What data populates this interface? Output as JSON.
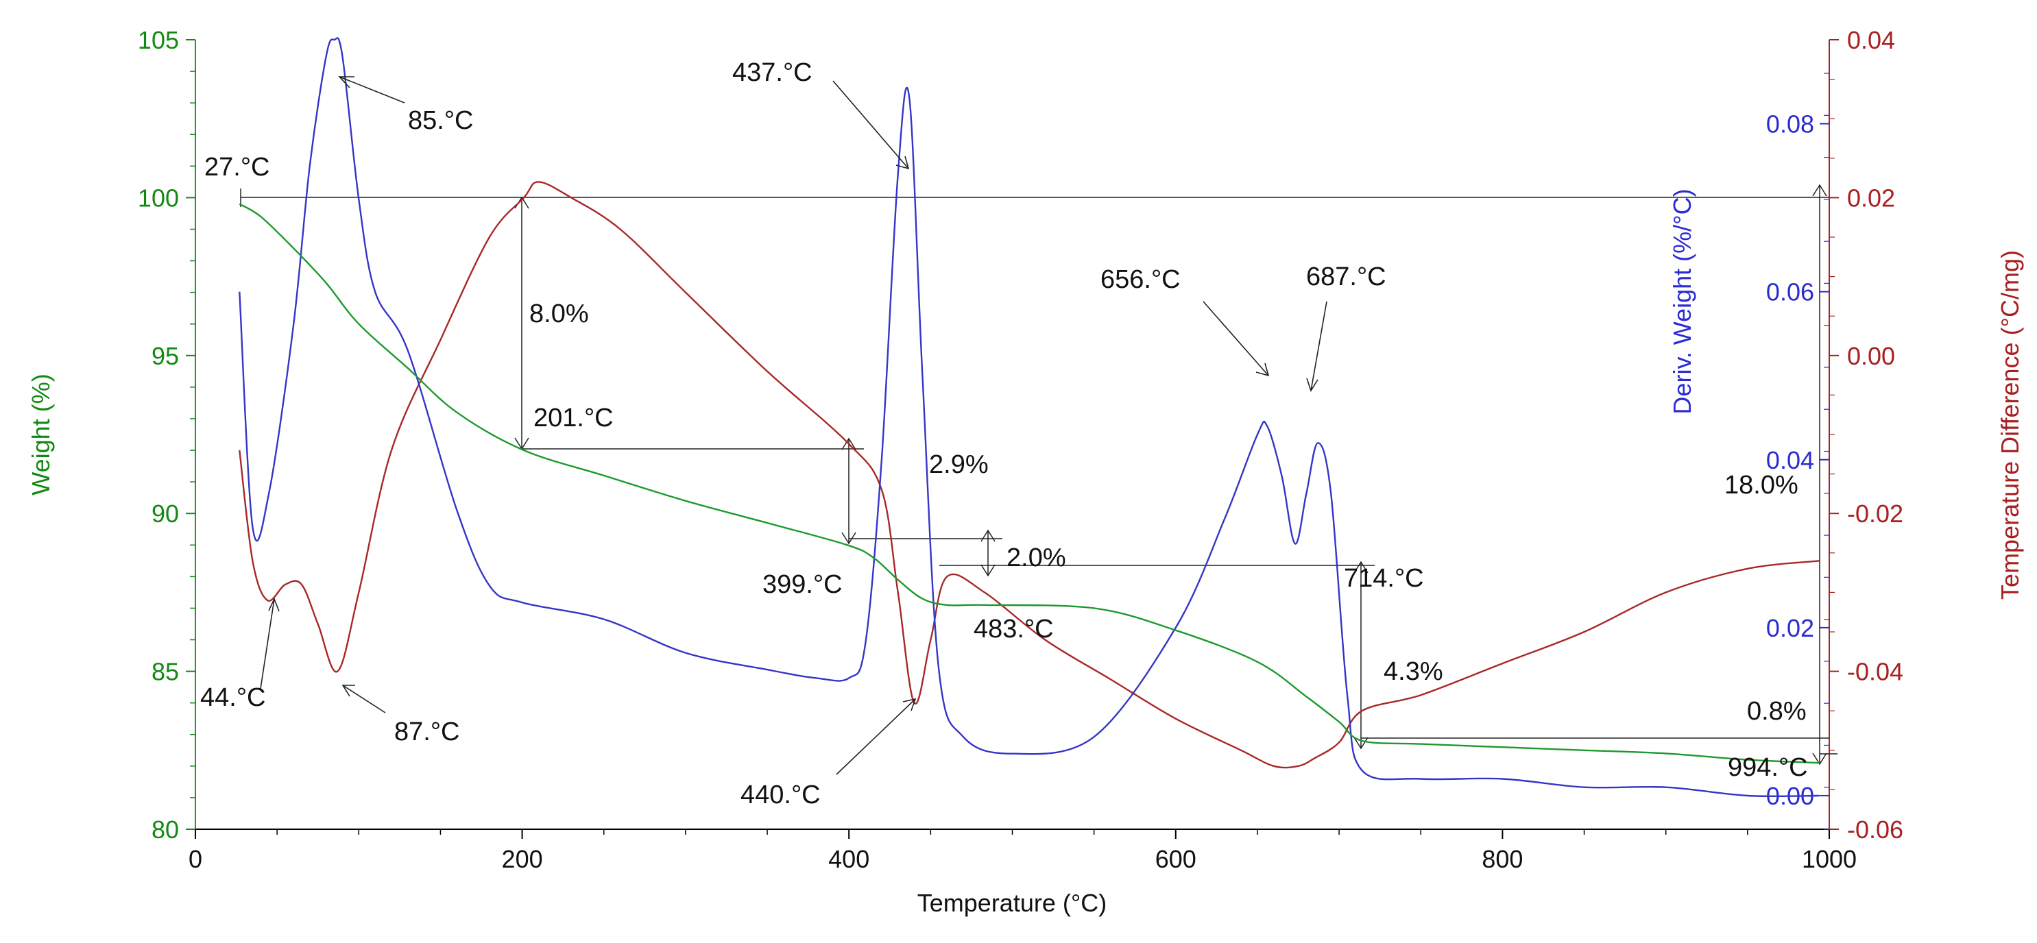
{
  "chart_data": {
    "type": "line",
    "title": "",
    "xlabel": "Temperature (°C)",
    "xlim": [
      0,
      1000
    ],
    "x_ticks": [
      0,
      200,
      400,
      600,
      800,
      1000
    ],
    "axes": {
      "weight": {
        "label": "Weight (%)",
        "range": [
          80,
          105
        ],
        "ticks": [
          80,
          85,
          90,
          95,
          100,
          105
        ],
        "color": "#128a12"
      },
      "deriv": {
        "label": "Deriv. Weight (%/°C)",
        "range": [
          -0.004,
          0.09
        ],
        "ticks": [
          0.0,
          0.02,
          0.04,
          0.06,
          0.08
        ],
        "tick_labels": [
          "0.00",
          "0.02",
          "0.04",
          "0.06",
          "0.08"
        ],
        "color": "#2b2bd4"
      },
      "tdiff": {
        "label": "Temperature Difference (°C/mg)",
        "range": [
          -0.06,
          0.04
        ],
        "ticks": [
          -0.06,
          -0.04,
          -0.02,
          0.0,
          0.02,
          0.04
        ],
        "tick_labels": [
          "-0.06",
          "-0.04",
          "-0.02",
          "0.00",
          "0.02",
          "0.04"
        ],
        "color": "#a82020"
      }
    },
    "series": [
      {
        "name": "Weight",
        "axis": "weight",
        "color": "#1d9a2c",
        "x": [
          27,
          40,
          60,
          80,
          100,
          130,
          160,
          201,
          250,
          300,
          350,
          399,
          415,
          430,
          445,
          460,
          483,
          550,
          600,
          650,
          680,
          700,
          714,
          750,
          800,
          850,
          900,
          950,
          994
        ],
        "y": [
          99.8,
          99.4,
          98.4,
          97.3,
          96.0,
          94.6,
          93.2,
          92.0,
          91.2,
          90.4,
          89.7,
          89.0,
          88.6,
          87.9,
          87.3,
          87.1,
          87.1,
          87.0,
          86.3,
          85.3,
          84.2,
          83.4,
          82.8,
          82.7,
          82.6,
          82.5,
          82.4,
          82.2,
          82.1
        ]
      },
      {
        "name": "Deriv. Weight",
        "axis": "deriv",
        "color": "#3535c8",
        "x": [
          27,
          35,
          45,
          60,
          70,
          80,
          85,
          90,
          100,
          110,
          130,
          160,
          180,
          200,
          250,
          300,
          350,
          380,
          400,
          410,
          420,
          430,
          437,
          445,
          455,
          470,
          500,
          550,
          600,
          630,
          650,
          656,
          665,
          673,
          680,
          687,
          695,
          705,
          714,
          750,
          800,
          850,
          900,
          950,
          994
        ],
        "y": [
          0.06,
          0.032,
          0.036,
          0.056,
          0.075,
          0.088,
          0.09,
          0.088,
          0.071,
          0.06,
          0.053,
          0.034,
          0.025,
          0.023,
          0.021,
          0.017,
          0.015,
          0.014,
          0.014,
          0.018,
          0.04,
          0.074,
          0.083,
          0.05,
          0.015,
          0.007,
          0.005,
          0.007,
          0.02,
          0.033,
          0.043,
          0.044,
          0.038,
          0.03,
          0.036,
          0.042,
          0.036,
          0.012,
          0.003,
          0.002,
          0.002,
          0.001,
          0.001,
          0.0,
          0.0
        ]
      },
      {
        "name": "Temperature Difference",
        "axis": "tdiff",
        "color": "#a82828",
        "x": [
          27,
          35,
          44,
          55,
          65,
          75,
          87,
          100,
          120,
          150,
          180,
          201,
          210,
          230,
          260,
          300,
          350,
          399,
          420,
          430,
          440,
          450,
          460,
          483,
          520,
          560,
          600,
          640,
          660,
          675,
          685,
          700,
          714,
          750,
          800,
          850,
          900,
          950,
          994
        ],
        "y": [
          -0.012,
          -0.026,
          -0.031,
          -0.029,
          -0.029,
          -0.034,
          -0.04,
          -0.03,
          -0.012,
          0.002,
          0.015,
          0.02,
          0.022,
          0.02,
          0.016,
          0.008,
          -0.002,
          -0.011,
          -0.017,
          -0.03,
          -0.044,
          -0.036,
          -0.028,
          -0.03,
          -0.036,
          -0.041,
          -0.046,
          -0.05,
          -0.052,
          -0.052,
          -0.051,
          -0.049,
          -0.045,
          -0.043,
          -0.039,
          -0.035,
          -0.03,
          -0.027,
          -0.026
        ]
      }
    ],
    "annotations": {
      "temperature_labels": [
        "27.°C",
        "85.°C",
        "437.°C",
        "201.°C",
        "656.°C",
        "687.°C",
        "399.°C",
        "483.°C",
        "714.°C",
        "44.°C",
        "87.°C",
        "440.°C",
        "994.°C"
      ],
      "percentage_labels": [
        "8.0%",
        "2.9%",
        "2.0%",
        "18.0%",
        "4.3%",
        "0.8%"
      ]
    }
  }
}
